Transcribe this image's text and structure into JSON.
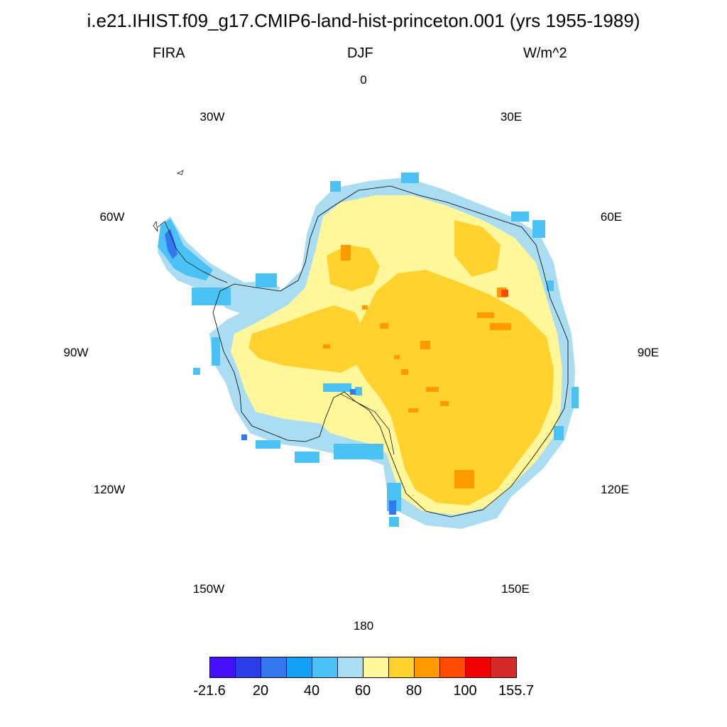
{
  "header": {
    "title": "i.e21.IHIST.f09_g17.CMIP6-land-hist-princeton.001 (yrs 1955-1989)",
    "variable": "FIRA",
    "season": "DJF",
    "units": "W/m^2"
  },
  "map": {
    "projection": "south-polar-stereographic",
    "longitude_labels": [
      {
        "name": "lon-0",
        "text": "0"
      },
      {
        "name": "lon-30e",
        "text": "30E"
      },
      {
        "name": "lon-60e",
        "text": "60E"
      },
      {
        "name": "lon-90e",
        "text": "90E"
      },
      {
        "name": "lon-120e",
        "text": "120E"
      },
      {
        "name": "lon-150e",
        "text": "150E"
      },
      {
        "name": "lon-180",
        "text": "180"
      },
      {
        "name": "lon-150w",
        "text": "150W"
      },
      {
        "name": "lon-120w",
        "text": "120W"
      },
      {
        "name": "lon-90w",
        "text": "90W"
      },
      {
        "name": "lon-60w",
        "text": "60W"
      },
      {
        "name": "lon-30w",
        "text": "30W"
      }
    ]
  },
  "legend": {
    "colors": [
      "#4410f5",
      "#2a3ee8",
      "#3378ee",
      "#14a0f5",
      "#4ac2f5",
      "#aadcf2",
      "#fff79a",
      "#ffd22e",
      "#ff9a00",
      "#ff4a00",
      "#f00000",
      "#d42a2a"
    ],
    "labels": [
      "-21.6",
      "20",
      "40",
      "60",
      "80",
      "100",
      "155.7"
    ]
  }
}
